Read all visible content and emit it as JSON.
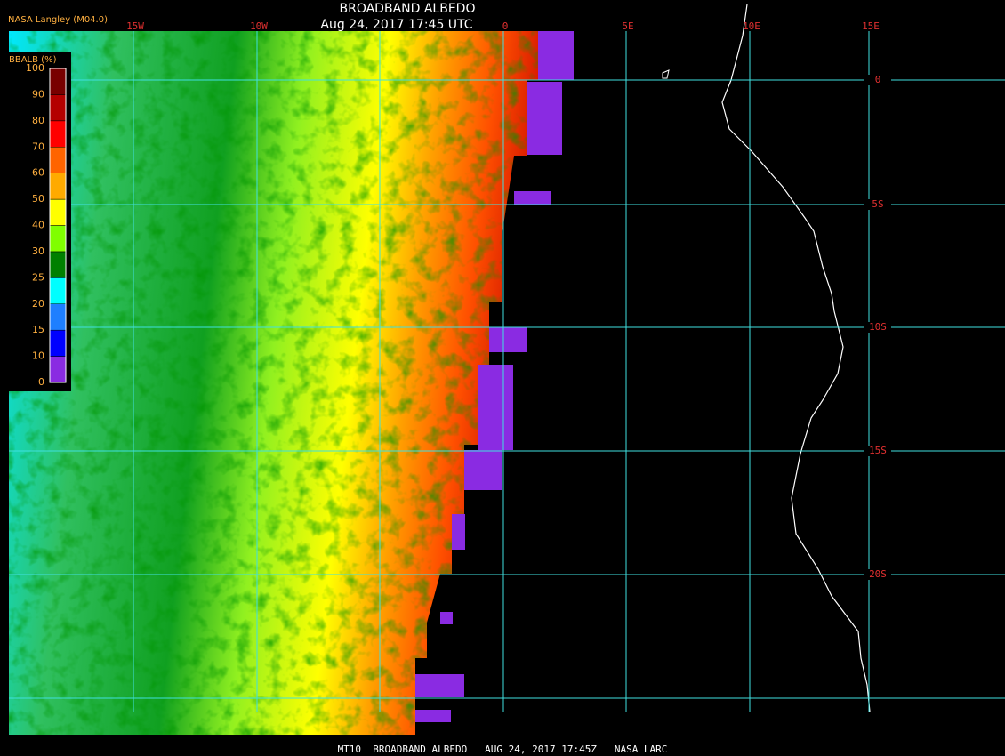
{
  "header": {
    "title": "BROADBAND ALBEDO",
    "subtitle": "Aug 24, 2017 17:45 UTC",
    "source": "NASA Langley (M04.0)"
  },
  "colorbar": {
    "label": "BBALB (%)",
    "ticks": [
      0,
      10,
      15,
      20,
      25,
      30,
      40,
      50,
      60,
      70,
      80,
      90,
      100
    ],
    "colors": [
      "#8a2be2",
      "#0000ff",
      "#1e7fff",
      "#00ffff",
      "#008000",
      "#80ff00",
      "#ffff00",
      "#ffaa00",
      "#ff6400",
      "#ff0000",
      "#b40000",
      "#780000"
    ]
  },
  "grid": {
    "lon_labels": [
      "15W",
      "10W",
      "0",
      "5E",
      "10E",
      "15E"
    ],
    "lat_labels": [
      "0",
      "5S",
      "10S",
      "15S",
      "20S"
    ]
  },
  "footer": "MT10  BROADBAND ALBEDO   AUG 24, 2017 17:45Z   NASA LARC"
}
